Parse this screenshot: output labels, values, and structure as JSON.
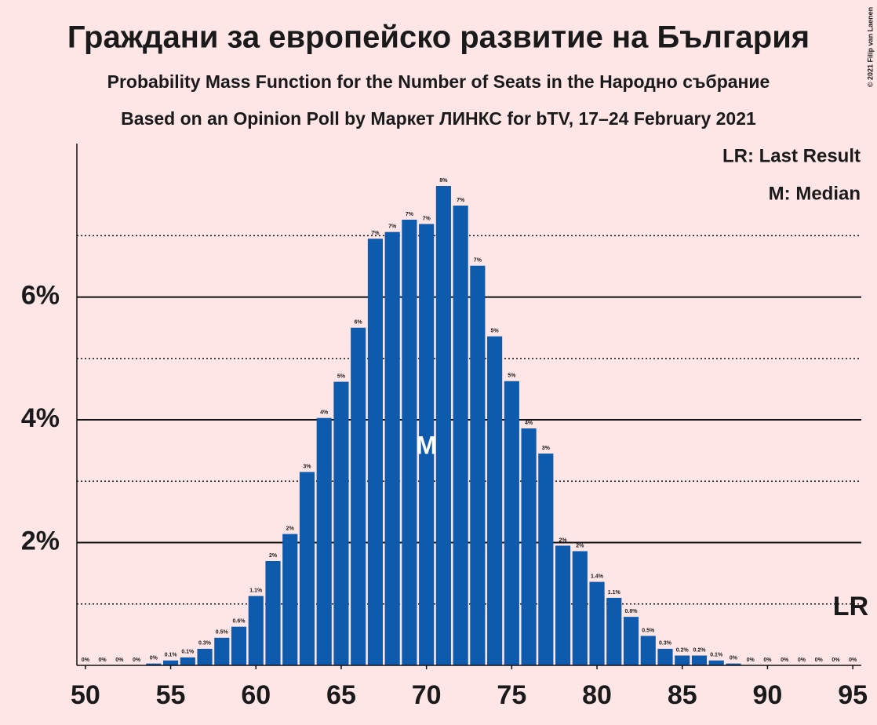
{
  "chart_data": {
    "type": "bar",
    "title": "Граждани за европейско развитие на България",
    "subtitles": [
      "Probability Mass Function for the Number of Seats in the Народно събрание",
      "Based on an Opinion Poll by Маркет ЛИНКС for bTV, 17–24 February 2021"
    ],
    "x": [
      50,
      51,
      52,
      53,
      54,
      55,
      56,
      57,
      58,
      59,
      60,
      61,
      62,
      63,
      64,
      65,
      66,
      67,
      68,
      69,
      70,
      71,
      72,
      73,
      74,
      75,
      76,
      77,
      78,
      79,
      80,
      81,
      82,
      83,
      84,
      85,
      86,
      87,
      88,
      89,
      90,
      91,
      92,
      93,
      94,
      95
    ],
    "values": [
      0,
      0,
      0,
      0,
      0.03,
      0.08,
      0.13,
      0.27,
      0.45,
      0.63,
      1.13,
      1.7,
      2.14,
      3.15,
      4.03,
      4.62,
      5.5,
      6.95,
      7.06,
      7.26,
      7.19,
      7.81,
      7.49,
      6.51,
      5.36,
      4.63,
      3.86,
      3.45,
      1.95,
      1.86,
      1.36,
      1.1,
      0.79,
      0.48,
      0.27,
      0.16,
      0.16,
      0.08,
      0.03,
      0,
      0,
      0,
      0,
      0,
      0,
      0
    ],
    "value_labels": [
      "0%",
      "0%",
      "0%",
      "0%",
      "0%",
      "0.1%",
      "0.1%",
      "0.3%",
      "0.5%",
      "0.6%",
      "1.1%",
      "2%",
      "2%",
      "3%",
      "4%",
      "5%",
      "6%",
      "7%",
      "7%",
      "7%",
      "7%",
      "8%",
      "7%",
      "7%",
      "5%",
      "5%",
      "4%",
      "3%",
      "2%",
      "2%",
      "1.4%",
      "1.1%",
      "0.8%",
      "0.5%",
      "0.3%",
      "0.2%",
      "0.2%",
      "0.1%",
      "0%",
      "0%",
      "0%",
      "0%",
      "0%",
      "0%",
      "0%",
      "0%"
    ],
    "color": "#0e5aac",
    "xlim": [
      49.5,
      95.5
    ],
    "xticks": [
      50,
      55,
      60,
      65,
      70,
      75,
      80,
      85,
      90,
      95
    ],
    "ylim": [
      0,
      8.5
    ],
    "yticks": [
      {
        "value": 2,
        "label": "2%"
      },
      {
        "value": 4,
        "label": "4%"
      },
      {
        "value": 6,
        "label": "6%"
      }
    ],
    "minor_yticks": [
      1,
      3,
      5,
      7
    ],
    "grid": true,
    "annotations": [
      {
        "x": 70,
        "label": "M"
      },
      {
        "x": 95,
        "label": "LR"
      }
    ],
    "legend": [
      "LR: Last Result",
      "M: Median"
    ],
    "copyright": "© 2021 Filip van Laenen"
  }
}
